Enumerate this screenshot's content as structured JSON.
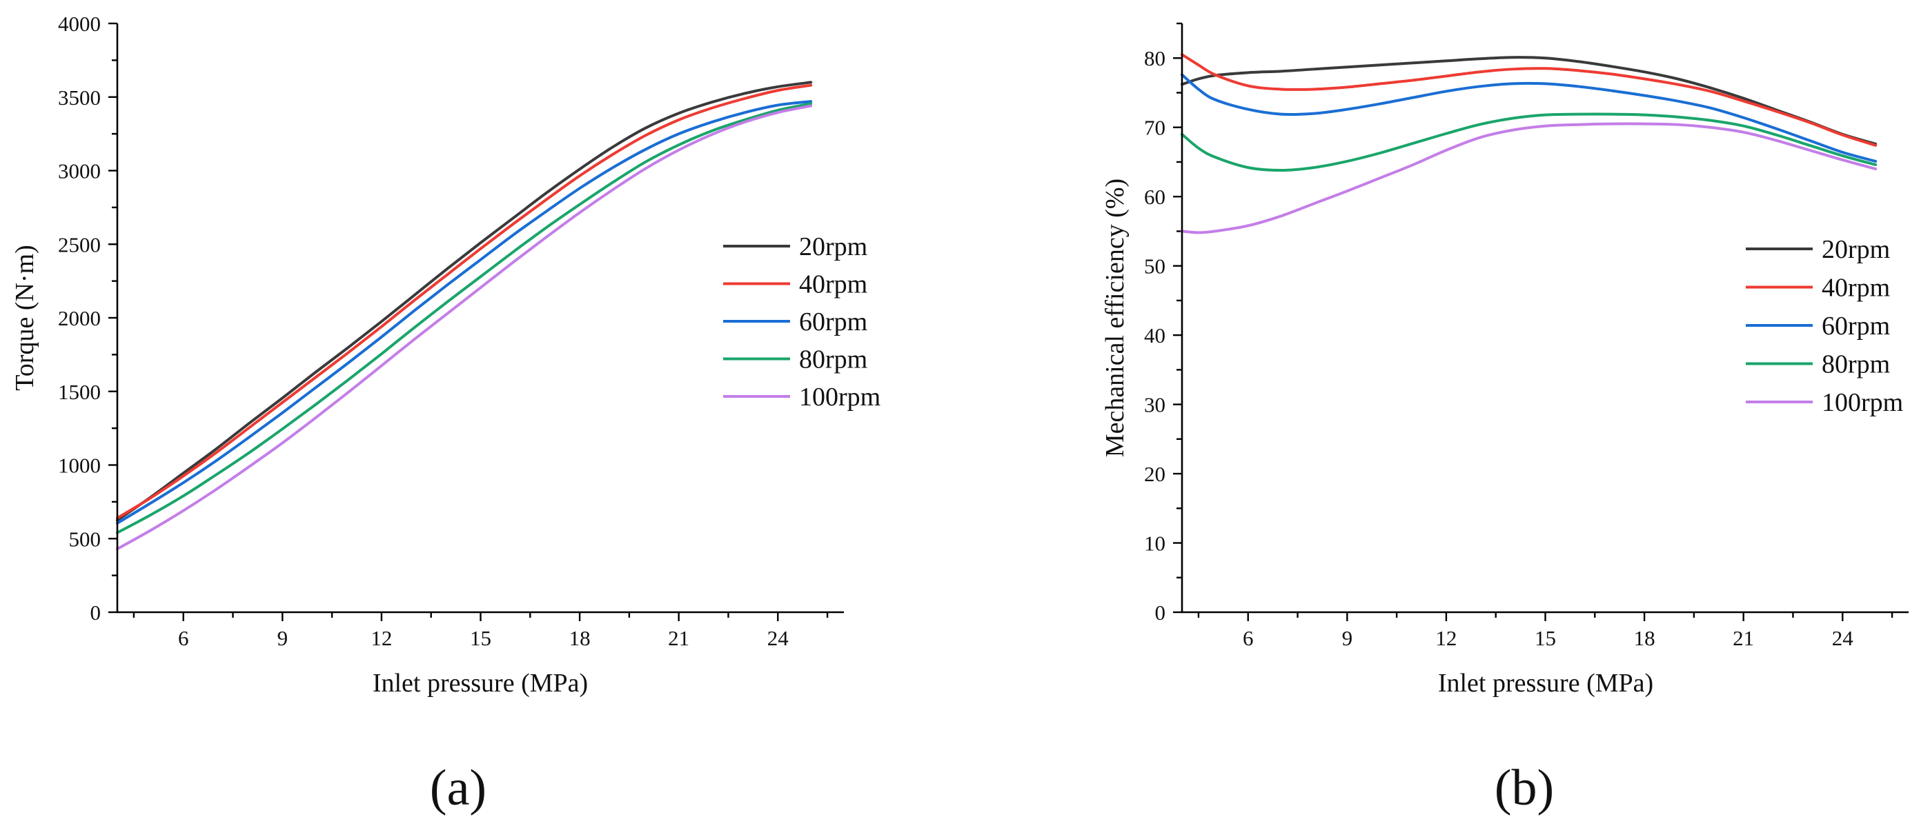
{
  "panels": [
    {
      "label": "(a)",
      "chart_data": {
        "type": "line",
        "title": "",
        "xlabel": "Inlet pressure (MPa)",
        "ylabel": "Torque (N·m)",
        "xlim": [
          4,
          26
        ],
        "ylim": [
          0,
          4000
        ],
        "xticks": [
          6,
          9,
          12,
          15,
          18,
          21,
          24
        ],
        "yticks": [
          0,
          500,
          1000,
          1500,
          2000,
          2500,
          3000,
          3500,
          4000
        ],
        "grid": false,
        "legend_position": "right",
        "x": [
          4,
          5,
          6,
          7,
          8,
          9,
          10,
          11,
          12,
          13,
          14,
          15,
          16,
          17,
          18,
          19,
          20,
          21,
          22,
          23,
          24,
          25
        ],
        "series": [
          {
            "name": "20rpm",
            "color": "#3a3a3a",
            "values": [
              625,
              780,
              945,
              1110,
              1285,
              1455,
              1630,
              1800,
              1975,
              2155,
              2335,
              2510,
              2680,
              2850,
              3010,
              3160,
              3290,
              3390,
              3465,
              3525,
              3570,
              3600
            ]
          },
          {
            "name": "40rpm",
            "color": "#ee3b33",
            "values": [
              640,
              775,
              925,
              1085,
              1255,
              1425,
              1595,
              1765,
              1940,
              2120,
              2295,
              2470,
              2640,
              2805,
              2965,
              3110,
              3240,
              3345,
              3425,
              3490,
              3545,
              3580
            ]
          },
          {
            "name": "60rpm",
            "color": "#1a6ed4",
            "values": [
              605,
              740,
              880,
              1030,
              1190,
              1355,
              1525,
              1695,
              1870,
              2050,
              2225,
              2395,
              2565,
              2725,
              2880,
              3020,
              3145,
              3250,
              3330,
              3395,
              3445,
              3470
            ]
          },
          {
            "name": "80rpm",
            "color": "#1aa56b",
            "values": [
              540,
              660,
              790,
              935,
              1085,
              1245,
              1410,
              1580,
              1755,
              1935,
              2110,
              2280,
              2450,
              2615,
              2770,
              2920,
              3060,
              3175,
              3270,
              3345,
              3410,
              3455
            ]
          },
          {
            "name": "100rpm",
            "color": "#c47ee8",
            "values": [
              430,
              555,
              690,
              835,
              990,
              1150,
              1320,
              1495,
              1675,
              1855,
              2030,
              2205,
              2380,
              2550,
              2715,
              2870,
              3015,
              3140,
              3245,
              3330,
              3395,
              3440
            ]
          }
        ]
      }
    },
    {
      "label": "(b)",
      "chart_data": {
        "type": "line",
        "title": "",
        "xlabel": "Inlet pressure (MPa)",
        "ylabel": "Mechanical efficiency (%)",
        "xlim": [
          4,
          26
        ],
        "ylim": [
          0,
          85
        ],
        "xticks": [
          6,
          9,
          12,
          15,
          18,
          21,
          24
        ],
        "yticks": [
          0,
          10,
          20,
          30,
          40,
          50,
          60,
          70,
          80
        ],
        "grid": false,
        "legend_position": "right",
        "x": [
          4,
          4.5,
          5,
          6,
          7,
          8,
          9,
          10,
          11,
          12,
          13,
          14,
          15,
          16,
          17,
          18,
          19,
          20,
          21,
          22,
          23,
          24,
          25
        ],
        "series": [
          {
            "name": "20rpm",
            "color": "#3a3a3a",
            "values": [
              76.2,
              77.0,
              77.5,
              77.9,
              78.1,
              78.4,
              78.7,
              79.0,
              79.3,
              79.6,
              79.9,
              80.1,
              80.0,
              79.5,
              78.8,
              78.0,
              77.0,
              75.7,
              74.2,
              72.5,
              70.8,
              69.0,
              67.6
            ]
          },
          {
            "name": "40rpm",
            "color": "#ee3b33",
            "values": [
              80.5,
              79.0,
              77.6,
              76.0,
              75.5,
              75.5,
              75.8,
              76.3,
              76.8,
              77.4,
              78.0,
              78.4,
              78.5,
              78.2,
              77.7,
              77.0,
              76.2,
              75.2,
              73.8,
              72.3,
              70.7,
              68.9,
              67.4
            ]
          },
          {
            "name": "60rpm",
            "color": "#1a6ed4",
            "values": [
              77.6,
              75.5,
              74.0,
              72.6,
              71.9,
              72.0,
              72.6,
              73.4,
              74.3,
              75.2,
              75.9,
              76.3,
              76.3,
              75.9,
              75.3,
              74.6,
              73.8,
              72.8,
              71.4,
              69.8,
              68.1,
              66.4,
              65.1
            ]
          },
          {
            "name": "80rpm",
            "color": "#1aa56b",
            "values": [
              69.0,
              67.0,
              65.7,
              64.2,
              63.8,
              64.2,
              65.1,
              66.3,
              67.7,
              69.1,
              70.4,
              71.3,
              71.8,
              71.9,
              71.9,
              71.8,
              71.5,
              71.0,
              70.2,
              68.9,
              67.4,
              65.9,
              64.6
            ]
          },
          {
            "name": "100rpm",
            "color": "#c47ee8",
            "values": [
              55.0,
              54.8,
              55.0,
              55.8,
              57.2,
              59.0,
              60.8,
              62.7,
              64.6,
              66.7,
              68.5,
              69.6,
              70.2,
              70.4,
              70.5,
              70.5,
              70.4,
              70.0,
              69.3,
              68.1,
              66.7,
              65.3,
              64.0
            ]
          }
        ]
      }
    }
  ]
}
